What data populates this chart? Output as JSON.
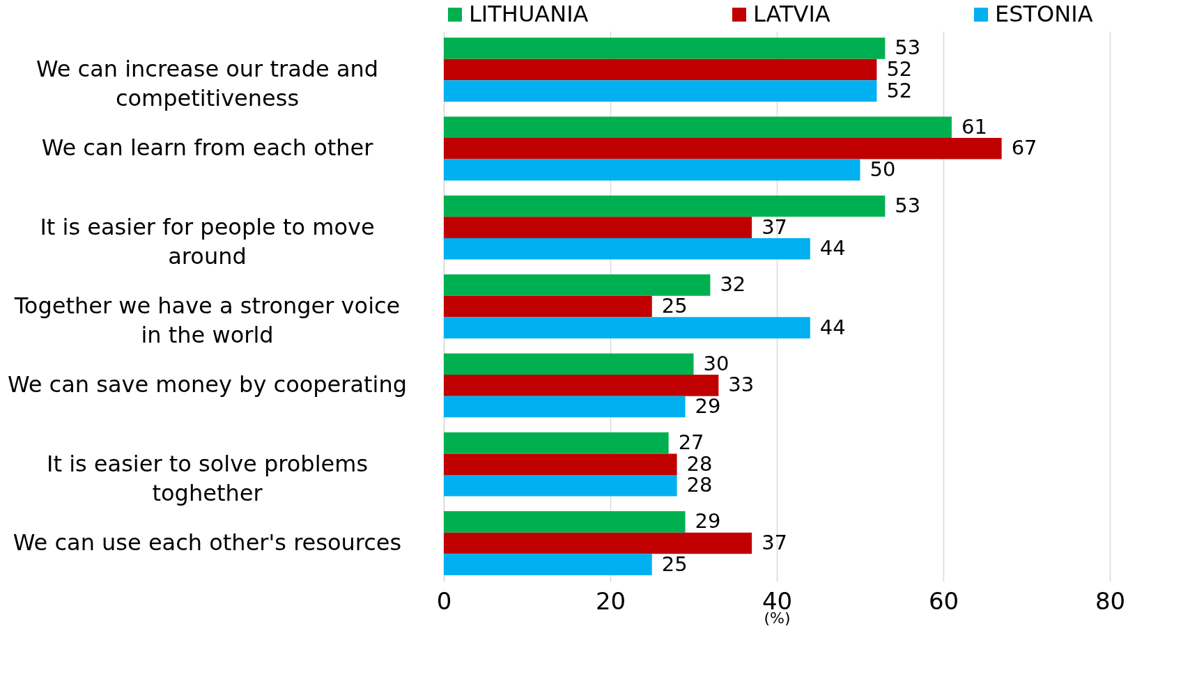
{
  "chart_data": {
    "type": "bar",
    "orientation": "horizontal",
    "xlabel": "(%)",
    "categories": [
      "We can increase our trade and competitiveness",
      "We can learn from each other",
      "It is easier for people to move around",
      "Together we have a stronger voice in the world",
      "We can save money by cooperating",
      "It is easier to solve problems toghether",
      "We can use each other's resources"
    ],
    "series": [
      {
        "name": "LITHUANIA",
        "color": "#00b050",
        "values": [
          53,
          61,
          53,
          32,
          30,
          27,
          29
        ]
      },
      {
        "name": "LATVIA",
        "color": "#c00000",
        "values": [
          52,
          67,
          37,
          25,
          33,
          28,
          37
        ]
      },
      {
        "name": "ESTONIA",
        "color": "#00b0f0",
        "values": [
          52,
          50,
          44,
          44,
          29,
          28,
          25
        ]
      }
    ],
    "xlim": [
      0,
      80
    ],
    "xticks": [
      0,
      20,
      40,
      60,
      80
    ],
    "grid": "x",
    "legend": "top",
    "data_labels": true
  }
}
